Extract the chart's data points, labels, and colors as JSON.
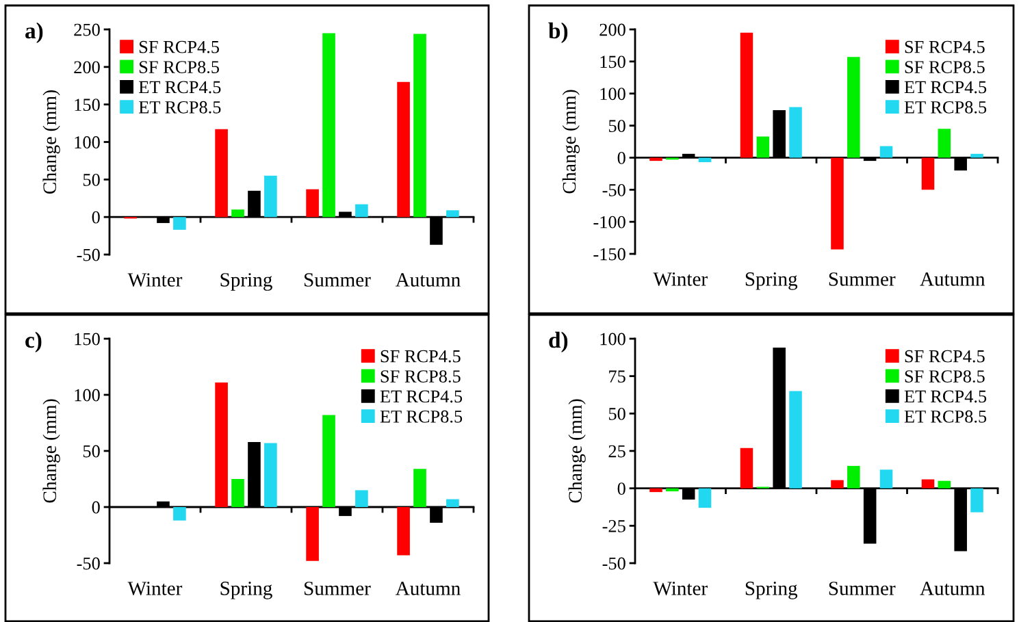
{
  "chart_data": [
    {
      "type": "bar",
      "annotations": [
        "a)"
      ],
      "ylabel": "Change (mm)",
      "categories": [
        "Winter",
        "Spring",
        "Summer",
        "Autumn"
      ],
      "ylim": [
        -50,
        250
      ],
      "yticks": [
        -50,
        0,
        50,
        100,
        150,
        200,
        250
      ],
      "legend": "top left",
      "series": [
        {
          "name": "SF RCP4.5",
          "color": "#ff0000",
          "values": [
            -2,
            117,
            37,
            180
          ]
        },
        {
          "name": "SF RCP8.5",
          "color": "#00ee00",
          "values": [
            0,
            10,
            245,
            244
          ]
        },
        {
          "name": "ET RCP4.5",
          "color": "#000000",
          "values": [
            -8,
            35,
            7,
            -37
          ]
        },
        {
          "name": "ET RCP8.5",
          "color": "#22d8f0",
          "values": [
            -17,
            55,
            17,
            9
          ]
        }
      ]
    },
    {
      "type": "bar",
      "annotations": [
        "b)"
      ],
      "ylabel": "Change (mm)",
      "categories": [
        "Winter",
        "Spring",
        "Summer",
        "Autumn"
      ],
      "ylim": [
        -150,
        200
      ],
      "yticks": [
        -150,
        -100,
        -50,
        0,
        50,
        100,
        150,
        200
      ],
      "legend": "top right",
      "series": [
        {
          "name": "SF RCP4.5",
          "color": "#ff0000",
          "values": [
            -5,
            195,
            -143,
            -50
          ]
        },
        {
          "name": "SF RCP8.5",
          "color": "#00ee00",
          "values": [
            -3,
            33,
            157,
            45
          ]
        },
        {
          "name": "ET RCP4.5",
          "color": "#000000",
          "values": [
            6,
            74,
            -5,
            -20
          ]
        },
        {
          "name": "ET RCP8.5",
          "color": "#22d8f0",
          "values": [
            -7,
            79,
            18,
            6
          ]
        }
      ]
    },
    {
      "type": "bar",
      "annotations": [
        "c)"
      ],
      "ylabel": "Change (mm)",
      "categories": [
        "Winter",
        "Spring",
        "Summer",
        "Autumn"
      ],
      "ylim": [
        -50,
        150
      ],
      "yticks": [
        -50,
        0,
        50,
        100,
        150
      ],
      "legend": "top right",
      "series": [
        {
          "name": "SF RCP4.5",
          "color": "#ff0000",
          "values": [
            0,
            111,
            -48,
            -43
          ]
        },
        {
          "name": "SF RCP8.5",
          "color": "#00ee00",
          "values": [
            0,
            25,
            82,
            34
          ]
        },
        {
          "name": "ET RCP4.5",
          "color": "#000000",
          "values": [
            5,
            58,
            -8,
            -14
          ]
        },
        {
          "name": "ET RCP8.5",
          "color": "#22d8f0",
          "values": [
            -12,
            57,
            15,
            7
          ]
        }
      ]
    },
    {
      "type": "bar",
      "annotations": [
        "d)"
      ],
      "ylabel": "Change (mm)",
      "categories": [
        "Winter",
        "Spring",
        "Summer",
        "Autumn"
      ],
      "ylim": [
        -50,
        100
      ],
      "yticks": [
        -50,
        -25,
        0,
        25,
        50,
        75,
        100
      ],
      "legend": "top right",
      "series": [
        {
          "name": "SF RCP4.5",
          "color": "#ff0000",
          "values": [
            -2.5,
            27,
            5.5,
            6
          ]
        },
        {
          "name": "SF RCP8.5",
          "color": "#00ee00",
          "values": [
            -2,
            1,
            15,
            5
          ]
        },
        {
          "name": "ET RCP4.5",
          "color": "#000000",
          "values": [
            -7.5,
            94,
            -37,
            -42
          ]
        },
        {
          "name": "ET RCP8.5",
          "color": "#22d8f0",
          "values": [
            -13,
            65,
            12.5,
            -16
          ]
        }
      ]
    }
  ]
}
